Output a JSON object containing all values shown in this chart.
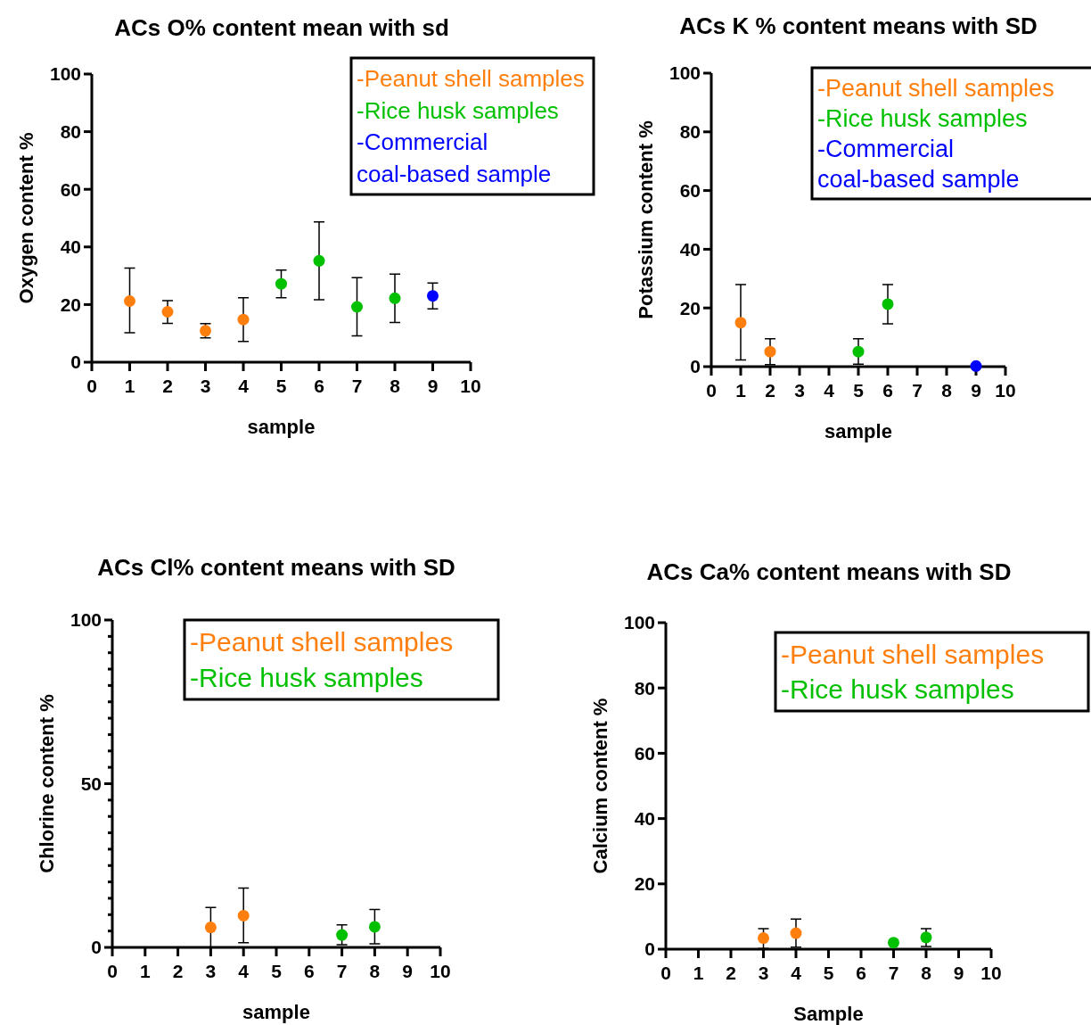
{
  "chart_data": [
    {
      "type": "scatter",
      "title": "ACs O% content mean with sd",
      "xlabel": "sample",
      "ylabel": "Oxygen content %",
      "xlim": [
        0,
        10
      ],
      "xticks": [
        0,
        1,
        2,
        3,
        4,
        5,
        6,
        7,
        8,
        9,
        10
      ],
      "ylim": [
        0,
        100
      ],
      "yticks": [
        0,
        20,
        40,
        60,
        80,
        100
      ],
      "marker": "circle",
      "legend": "top right",
      "grid": false,
      "series": [
        {
          "name": "-Peanut shell samples",
          "color": "#ff7f0e",
          "x": [
            1,
            2,
            3,
            4
          ],
          "values": [
            21.2,
            17.5,
            10.9,
            14.8
          ],
          "errors": [
            [
              10.2,
              32.7
            ],
            [
              13.5,
              21.4
            ],
            [
              8.4,
              13.4
            ],
            [
              7.2,
              22.4
            ]
          ]
        },
        {
          "name": "-Rice husk samples",
          "color": "#00c000",
          "x": [
            5,
            6,
            7,
            8
          ],
          "values": [
            27.2,
            35.2,
            19.2,
            22.2
          ],
          "errors": [
            [
              22.4,
              32.0
            ],
            [
              21.7,
              48.7
            ],
            [
              9.1,
              29.3
            ],
            [
              13.8,
              30.6
            ]
          ]
        },
        {
          "name": "-Commercial coal-based sample",
          "color": "#0000ff",
          "x": [
            9
          ],
          "values": [
            23.0
          ],
          "errors": [
            [
              18.5,
              27.5
            ]
          ]
        }
      ]
    },
    {
      "type": "scatter",
      "title": "ACs K % content means with SD",
      "xlabel": "sample",
      "ylabel": "Potassium content %",
      "xlim": [
        0,
        10
      ],
      "xticks": [
        0,
        1,
        2,
        3,
        4,
        5,
        6,
        7,
        8,
        9,
        10
      ],
      "ylim": [
        0,
        100
      ],
      "yticks": [
        0,
        20,
        40,
        60,
        80,
        100
      ],
      "marker": "circle",
      "legend": "top right",
      "grid": false,
      "series": [
        {
          "name": "-Peanut shell samples",
          "color": "#ff7f0e",
          "x": [
            1,
            2
          ],
          "values": [
            15.0,
            5.1
          ],
          "errors": [
            [
              2.3,
              28.0
            ],
            [
              0.7,
              9.5
            ]
          ]
        },
        {
          "name": "-Rice husk samples",
          "color": "#00c000",
          "x": [
            5,
            6
          ],
          "values": [
            5.1,
            21.3
          ],
          "errors": [
            [
              0.8,
              9.5
            ],
            [
              14.6,
              28.0
            ]
          ]
        },
        {
          "name": "-Commercial coal-based sample",
          "color": "#0000ff",
          "x": [
            9
          ],
          "values": [
            0.2
          ],
          "errors": [
            null
          ]
        }
      ]
    },
    {
      "type": "scatter",
      "title": "ACs Cl% content means with SD",
      "xlabel": "sample",
      "ylabel": "Chlorine content %",
      "xlim": [
        0,
        10
      ],
      "xticks": [
        0,
        1,
        2,
        3,
        4,
        5,
        6,
        7,
        8,
        9,
        10
      ],
      "ylim": [
        0,
        100
      ],
      "yticks": [
        0,
        {
          "value": 5,
          "label": null
        },
        {
          "value": 10,
          "label": null
        },
        {
          "value": 15,
          "label": null
        },
        {
          "value": 20,
          "label": null
        },
        {
          "value": 25,
          "label": null
        },
        {
          "value": 30,
          "label": null
        },
        {
          "value": 35,
          "label": null
        },
        {
          "value": 40,
          "label": null
        },
        {
          "value": 45,
          "label": null
        },
        50,
        {
          "value": 55,
          "label": null
        },
        {
          "value": 60,
          "label": null
        },
        {
          "value": 65,
          "label": null
        },
        {
          "value": 70,
          "label": null
        },
        {
          "value": 75,
          "label": null
        },
        {
          "value": 80,
          "label": null
        },
        {
          "value": 85,
          "label": null
        },
        {
          "value": 90,
          "label": null
        },
        {
          "value": 95,
          "label": null
        },
        100
      ],
      "marker": "circle",
      "legend": "top right",
      "grid": false,
      "series": [
        {
          "name": "-Peanut shell samples",
          "color": "#ff7f0e",
          "x": [
            3,
            4
          ],
          "values": [
            6.1,
            9.7
          ],
          "errors": [
            [
              0,
              12.2
            ],
            [
              1.4,
              18.1
            ]
          ]
        },
        {
          "name": "-Rice husk samples",
          "color": "#00c000",
          "x": [
            7,
            8
          ],
          "values": [
            3.8,
            6.3
          ],
          "errors": [
            [
              0.8,
              6.9
            ],
            [
              1.1,
              11.6
            ]
          ]
        }
      ]
    },
    {
      "type": "scatter",
      "title": "ACs Ca% content means with SD",
      "xlabel": "Sample",
      "ylabel": "Calcium content %",
      "xlim": [
        0,
        10
      ],
      "xticks": [
        0,
        1,
        2,
        3,
        4,
        5,
        6,
        7,
        8,
        9,
        10
      ],
      "ylim": [
        0,
        100
      ],
      "yticks": [
        0,
        20,
        40,
        60,
        80,
        100
      ],
      "marker": "circle",
      "legend": "top right",
      "grid": false,
      "series": [
        {
          "name": "-Peanut shell samples",
          "color": "#ff7f0e",
          "x": [
            3,
            4
          ],
          "values": [
            3.4,
            4.9
          ],
          "errors": [
            [
              0.2,
              6.3
            ],
            [
              0.6,
              9.2
            ]
          ]
        },
        {
          "name": "-Rice husk samples",
          "color": "#00c000",
          "x": [
            7,
            8
          ],
          "values": [
            2.0,
            3.6
          ],
          "errors": [
            null,
            [
              0.8,
              6.3
            ]
          ]
        }
      ]
    }
  ]
}
